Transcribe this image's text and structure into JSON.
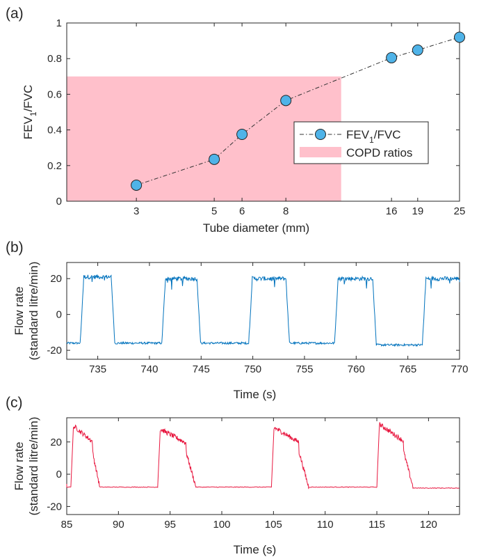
{
  "chart_data": [
    {
      "panel_label": "(a)",
      "type": "line",
      "xlabel": "Tube diameter (mm)",
      "ylabel": "FEV1/FVC",
      "x_scale": "log",
      "x_ticks": [
        3,
        5,
        6,
        8,
        16,
        19,
        25
      ],
      "y_ticks": [
        0,
        0.2,
        0.4,
        0.6,
        0.8,
        1
      ],
      "xlim": [
        1.9,
        25
      ],
      "ylim": [
        0,
        1
      ],
      "grid": false,
      "legend_position": "center-right",
      "series": [
        {
          "name": "FEV1/FVC",
          "color": "#4fb3e8",
          "line_style": "dash-dot",
          "marker": "circle",
          "x": [
            3,
            5,
            6,
            8,
            16,
            19,
            25
          ],
          "y": [
            0.09,
            0.235,
            0.375,
            0.565,
            0.805,
            0.848,
            0.92
          ]
        }
      ],
      "shaded_regions": [
        {
          "name": "COPD ratios",
          "color": "#ffc0cb",
          "x_from": 1.9,
          "x_to": 11.5,
          "y_from": 0,
          "y_to": 0.7
        }
      ]
    },
    {
      "panel_label": "(b)",
      "type": "line",
      "xlabel": "Time (s)",
      "ylabel": "Flow rate",
      "ylabel2": "(standard litre/min)",
      "x_ticks": [
        735,
        740,
        745,
        750,
        755,
        760,
        765,
        770
      ],
      "y_ticks": [
        -20,
        0,
        20
      ],
      "xlim": [
        732,
        770
      ],
      "ylim": [
        -25,
        29
      ],
      "grid": false,
      "series": [
        {
          "color": "#0072bd",
          "waveform": "square",
          "high_level": 21,
          "low_level": -16,
          "segments": [
            {
              "t": 732,
              "level": -16
            },
            {
              "t": 733.3,
              "rise_to": 21
            },
            {
              "t": 736.3,
              "fall_to": -16
            },
            {
              "t": 741.2,
              "rise_to": 20
            },
            {
              "t": 744.6,
              "fall_to": -16
            },
            {
              "t": 749.6,
              "rise_to": 20
            },
            {
              "t": 753.2,
              "fall_to": -16
            },
            {
              "t": 757.9,
              "rise_to": 20
            },
            {
              "t": 761.6,
              "fall_to": -17
            },
            {
              "t": 766.4,
              "rise_to": 20
            },
            {
              "t": 770,
              "level": 18
            }
          ]
        }
      ]
    },
    {
      "panel_label": "(c)",
      "type": "line",
      "xlabel": "Time (s)",
      "ylabel": "Flow rate",
      "ylabel2": "(standard litre/min)",
      "x_ticks": [
        85,
        90,
        95,
        100,
        105,
        110,
        115,
        120
      ],
      "y_ticks": [
        -20,
        0,
        20
      ],
      "xlim": [
        85,
        123
      ],
      "ylim": [
        -25,
        35
      ],
      "grid": false,
      "series": [
        {
          "color": "#e8173f",
          "waveform": "sawtooth",
          "baseline": -8,
          "peaks": [
            {
              "start": 85.4,
              "peak": 30,
              "end": 88.2
            },
            {
              "start": 93.8,
              "peak": 28,
              "end": 97.5
            },
            {
              "start": 104.8,
              "peak": 29,
              "end": 108.4
            },
            {
              "start": 115.0,
              "peak": 31,
              "end": 118.5
            }
          ]
        }
      ]
    }
  ]
}
